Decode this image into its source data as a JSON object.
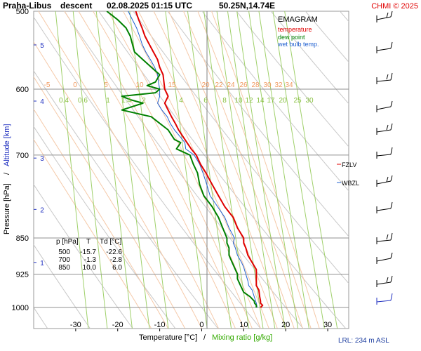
{
  "header": {
    "station": "Praha-Libus",
    "mode": "descent",
    "datetime": "02.08.2025 01:15 UTC",
    "coords": "50.25N,14.74E",
    "credit": "CHMI © 2025"
  },
  "legend": {
    "title": "EMAGRAM",
    "items": [
      {
        "label": "temperature",
        "color": "#e00000"
      },
      {
        "label": "dew point",
        "color": "#008000"
      },
      {
        "label": "wet bulb temp.",
        "color": "#2060d0"
      }
    ]
  },
  "axes": {
    "x_label_temp": "Temperature [°C]",
    "x_label_sep": "/",
    "x_label_mix": "Mixing ratio [g/kg]",
    "y_label_p": "Pressure [hPa]",
    "y_label_sep": "/",
    "y_label_alt": "Altitude [km]",
    "pressure_ticks": [
      500,
      600,
      700,
      850,
      925,
      1000
    ],
    "temp_ticks": [
      -30,
      -20,
      -10,
      0,
      10,
      20,
      30
    ],
    "altitude_ticks": [
      1,
      2,
      3,
      4,
      5
    ],
    "theta_labels": [
      "-5",
      "0",
      "5",
      "10",
      "15",
      "20",
      "22",
      "24",
      "26",
      "28",
      "30",
      "32",
      "34"
    ],
    "mix_labels": [
      "0.4",
      "0.6",
      "1",
      "1.4",
      "2",
      "4",
      "6",
      "8",
      "10",
      "12",
      "14",
      "17",
      "20",
      "25",
      "30"
    ]
  },
  "markers": [
    {
      "label": "FZLV",
      "color": "#e00000"
    },
    {
      "label": "WBZL",
      "color": "#2060d0"
    }
  ],
  "table": {
    "headers": [
      "p [hPa]",
      "T",
      "Td [°C]"
    ],
    "rows": [
      [
        "500",
        "-15.7",
        "-22.6"
      ],
      [
        "700",
        "-1.3",
        "-2.8"
      ],
      [
        "850",
        "10.0",
        "6.0"
      ]
    ]
  },
  "footer": {
    "lrl": "LRL: 234 m ASL"
  },
  "chart_data": {
    "type": "line",
    "title": "EMAGRAM",
    "xlabel": "Temperature [°C] / Mixing ratio [g/kg]",
    "ylabel": "Pressure [hPa] / Altitude [km]",
    "xlim": [
      -40,
      35
    ],
    "ylim": [
      1000,
      500
    ],
    "y_scale": "log",
    "series": [
      {
        "name": "temperature",
        "color": "#e00000",
        "p": [
          1000,
          995,
          990,
          985,
          975,
          960,
          950,
          940,
          925,
          915,
          900,
          885,
          870,
          860,
          850,
          830,
          810,
          790,
          770,
          750,
          730,
          715,
          700,
          690,
          680,
          670,
          660,
          650,
          640,
          630,
          620,
          610,
          600,
          590,
          580,
          570,
          560,
          550,
          540,
          530,
          520,
          510,
          500
        ],
        "t": [
          14.0,
          14.5,
          14.0,
          14.0,
          13.8,
          13.6,
          13.0,
          13.0,
          13.0,
          13.0,
          12.0,
          11.0,
          10.5,
          10.0,
          10.0,
          8.5,
          7.5,
          5.5,
          4.0,
          2.5,
          1.0,
          -0.3,
          -1.3,
          -2.5,
          -3.5,
          -4.5,
          -5.5,
          -6.3,
          -7.2,
          -8.0,
          -8.8,
          -8.0,
          -8.8,
          -9.0,
          -9.2,
          -10.0,
          -10.5,
          -11.5,
          -12.5,
          -13.5,
          -14.2,
          -15.0,
          -15.7
        ]
      },
      {
        "name": "dew point",
        "color": "#008000",
        "p": [
          1000,
          995,
          990,
          985,
          975,
          965,
          955,
          945,
          935,
          925,
          915,
          905,
          895,
          885,
          870,
          860,
          850,
          830,
          810,
          790,
          770,
          750,
          730,
          715,
          700,
          690,
          680,
          675,
          670,
          660,
          650,
          640,
          630,
          620,
          615,
          610,
          605,
          600,
          595,
          590,
          585,
          580,
          570,
          560,
          550,
          540,
          530,
          520,
          510,
          500
        ],
        "td": [
          13.0,
          13.0,
          12.6,
          12.5,
          11.5,
          10.0,
          9.5,
          9.0,
          8.5,
          8.5,
          8.0,
          7.5,
          7.0,
          6.5,
          6.5,
          6.0,
          6.0,
          5.0,
          4.0,
          2.5,
          0.5,
          -0.5,
          -1.0,
          -2.0,
          -2.8,
          -6.0,
          -5.0,
          -6.5,
          -7.0,
          -8.0,
          -10.0,
          -12.0,
          -19.0,
          -14.0,
          -17.0,
          -19.0,
          -11.0,
          -10.0,
          -13.0,
          -11.0,
          -10.5,
          -10.0,
          -12.0,
          -14.0,
          -16.0,
          -16.5,
          -17.0,
          -18.0,
          -20.0,
          -22.6
        ]
      },
      {
        "name": "wet bulb temp.",
        "color": "#2060d0",
        "p": [
          1000,
          990,
          975,
          960,
          950,
          940,
          925,
          910,
          900,
          885,
          870,
          860,
          850,
          830,
          810,
          790,
          770,
          750,
          730,
          715,
          700,
          690,
          680,
          670,
          660,
          650,
          640,
          630,
          620,
          610,
          600,
          590,
          580,
          570,
          560,
          550,
          540,
          530,
          520,
          510,
          500
        ],
        "tw": [
          13.2,
          13.0,
          12.5,
          12.0,
          11.2,
          11.0,
          10.5,
          10.0,
          9.5,
          8.5,
          8.0,
          7.5,
          7.8,
          6.5,
          5.5,
          3.8,
          2.0,
          1.2,
          0.3,
          -0.5,
          -1.8,
          -3.8,
          -4.0,
          -5.2,
          -6.5,
          -7.5,
          -8.2,
          -9.5,
          -10.5,
          -10.0,
          -10.0,
          -10.3,
          -10.5,
          -11.2,
          -12.2,
          -13.3,
          -14.2,
          -14.8,
          -15.5,
          -16.5,
          -17.5
        ]
      }
    ]
  }
}
